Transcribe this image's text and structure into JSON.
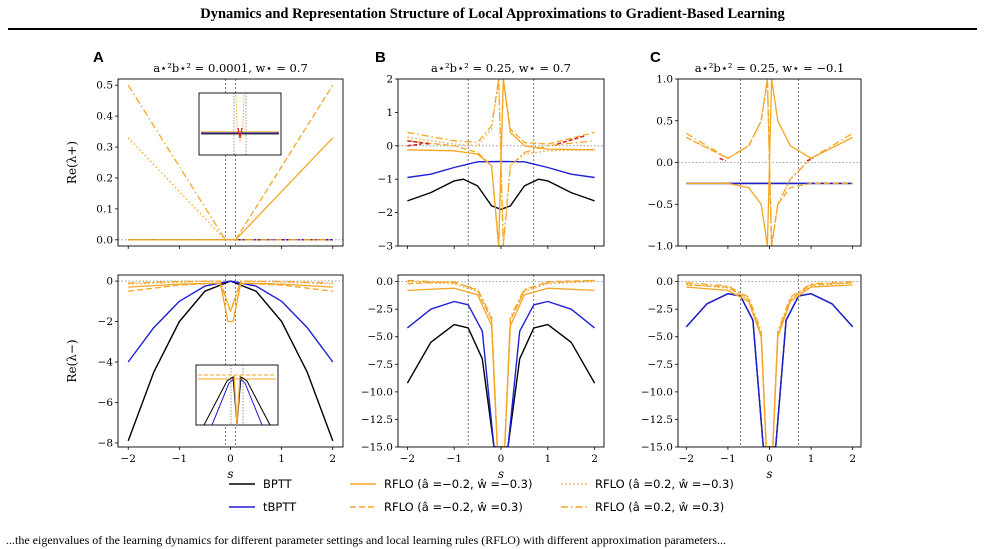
{
  "header": {
    "title": "Dynamics and Representation Structure of Local Approximations to Gradient-Based Learning"
  },
  "caption": {
    "text": "...the eigenvalues of the learning dynamics for different parameter settings and local learning rules (RFLO) with different approximation parameters..."
  },
  "colors": {
    "bptt": "#000000",
    "tbptt": "#1f1fd6",
    "rflo": "#f5a623",
    "unstable": "#d62728"
  },
  "legend": {
    "items": [
      {
        "key": "bptt",
        "label": "BPTT",
        "style": "solid",
        "color": "#000000"
      },
      {
        "key": "tbptt",
        "label": "tBPTT",
        "style": "solid",
        "color": "#1f1fd6"
      },
      {
        "key": "rflo1",
        "label": "RFLO (â =−0.2, ŵ =−0.3)",
        "style": "solid",
        "color": "#f5a623"
      },
      {
        "key": "rflo2",
        "label": "RFLO (â =−0.2, ŵ =0.3)",
        "style": "dashed",
        "color": "#f5a623"
      },
      {
        "key": "rflo3",
        "label": "RFLO (â =0.2, ŵ =−0.3)",
        "style": "dotted",
        "color": "#f5a623"
      },
      {
        "key": "rflo4",
        "label": "RFLO (â =0.2, ŵ =0.3)",
        "style": "dashdot",
        "color": "#f5a623"
      }
    ]
  },
  "chart_data": [
    {
      "panel": "A",
      "row": "top",
      "type": "line",
      "title": "a⋆²b⋆² = 0.0001, w⋆ = 0.7",
      "xlabel": "",
      "ylabel": "Re(λ+)",
      "xlim": [
        -2.2,
        2.2
      ],
      "ylim": [
        -0.02,
        0.52
      ],
      "xticks": [],
      "yticks": [
        0.0,
        0.1,
        0.2,
        0.3,
        0.4,
        0.5
      ],
      "ytick_labels": [
        "0.0",
        "0.1",
        "0.2",
        "0.3",
        "0.4",
        "0.5"
      ],
      "vlines": [
        -0.1,
        0.1
      ],
      "inset": "zoom near s = 0",
      "series": [
        {
          "name": "BPTT",
          "x": [
            -2,
            2
          ],
          "y": [
            0.0,
            0.0
          ]
        },
        {
          "name": "tBPTT",
          "x": [
            -2,
            2
          ],
          "y": [
            0.0,
            0.0
          ]
        },
        {
          "name": "RFLO (â =−0.2, ŵ =−0.3)",
          "x": [
            -2,
            -0.1,
            0.1,
            2
          ],
          "y": [
            0.0,
            0.0,
            0.0,
            0.33
          ]
        },
        {
          "name": "RFLO (â =−0.2, ŵ =0.3)",
          "x": [
            -2,
            -0.1,
            0.1,
            2
          ],
          "y": [
            0.0,
            0.0,
            0.0,
            0.5
          ]
        },
        {
          "name": "RFLO (â =0.2, ŵ =−0.3)",
          "x": [
            -2,
            -0.1,
            0.1,
            2
          ],
          "y": [
            0.33,
            0.0,
            0.0,
            0.0
          ]
        },
        {
          "name": "RFLO (â =0.2, ŵ =0.3)",
          "x": [
            -2,
            -0.1,
            0.1,
            2
          ],
          "y": [
            0.5,
            0.0,
            0.0,
            0.0
          ]
        }
      ]
    },
    {
      "panel": "B",
      "row": "top",
      "type": "line",
      "title": "a⋆²b⋆² = 0.25, w⋆ = 0.7",
      "xlabel": "",
      "ylabel": "",
      "xlim": [
        -2.2,
        2.2
      ],
      "ylim": [
        -3,
        2
      ],
      "xticks": [],
      "yticks": [
        -3,
        -2,
        -1,
        0,
        1,
        2
      ],
      "ytick_labels": [
        "−3",
        "−2",
        "−1",
        "0",
        "1",
        "2"
      ],
      "vlines": [
        -0.7,
        0.7
      ],
      "series": [
        {
          "name": "BPTT",
          "x": [
            -2,
            -1.5,
            -1,
            -0.8,
            -0.5,
            -0.2,
            0,
            0.2,
            0.5,
            0.8,
            1,
            1.5,
            2
          ],
          "y": [
            -1.65,
            -1.4,
            -1.05,
            -1.0,
            -1.2,
            -1.8,
            -1.9,
            -1.8,
            -1.2,
            -1.0,
            -1.05,
            -1.4,
            -1.65
          ]
        },
        {
          "name": "tBPTT",
          "x": [
            -2,
            -1.5,
            -1,
            -0.5,
            0,
            0.5,
            1,
            1.5,
            2
          ],
          "y": [
            -0.95,
            -0.85,
            -0.65,
            -0.48,
            -0.47,
            -0.48,
            -0.65,
            -0.85,
            -0.95
          ]
        },
        {
          "name": "RFLO (â =−0.2, ŵ =−0.3)",
          "x": [
            -2,
            -1,
            -0.5,
            -0.2,
            -0.05,
            0.05,
            0.2,
            0.5,
            1,
            2
          ],
          "y": [
            -0.12,
            -0.15,
            -0.25,
            -0.6,
            -3.0,
            2.0,
            0.4,
            0.0,
            -0.1,
            -0.12
          ]
        },
        {
          "name": "RFLO (â =−0.2, ŵ =0.3)",
          "x": [
            -2,
            -1,
            -0.5,
            -0.2,
            -0.05,
            0.05,
            0.2,
            0.5,
            1,
            2
          ],
          "y": [
            0.15,
            0.0,
            -0.2,
            -0.6,
            -3.0,
            2.0,
            0.5,
            0.1,
            0.05,
            0.4
          ]
        },
        {
          "name": "RFLO (â =0.2, ŵ =−0.3)",
          "x": [
            -2,
            -1,
            -0.5,
            -0.2,
            -0.05,
            0.05,
            0.2,
            0.5,
            1,
            2
          ],
          "y": [
            0.25,
            0.05,
            0.0,
            0.5,
            2.0,
            -3.0,
            -0.6,
            -0.25,
            -0.15,
            -0.12
          ]
        },
        {
          "name": "RFLO (â =0.2, ŵ =0.3)",
          "x": [
            -2,
            -1,
            -0.5,
            -0.2,
            -0.05,
            0.05,
            0.2,
            0.5,
            1,
            2
          ],
          "y": [
            0.4,
            0.15,
            0.1,
            0.6,
            2.0,
            -3.0,
            -0.6,
            -0.2,
            0.0,
            0.15
          ]
        }
      ]
    },
    {
      "panel": "C",
      "row": "top",
      "type": "line",
      "title": "a⋆²b⋆² = 0.25, w⋆ = −0.1",
      "xlabel": "",
      "ylabel": "",
      "xlim": [
        -2.2,
        2.2
      ],
      "ylim": [
        -1.0,
        1.0
      ],
      "xticks": [],
      "yticks": [
        -1.0,
        -0.5,
        0.0,
        0.5,
        1.0
      ],
      "ytick_labels": [
        "−1.0",
        "−0.5",
        "0.0",
        "0.5",
        "1.0"
      ],
      "vlines": [
        -0.7,
        0.7
      ],
      "series": [
        {
          "name": "BPTT",
          "x": [
            -2,
            2
          ],
          "y": [
            -0.25,
            -0.25
          ]
        },
        {
          "name": "tBPTT",
          "x": [
            -2,
            2
          ],
          "y": [
            -0.25,
            -0.25
          ]
        },
        {
          "name": "RFLO (â =−0.2, ŵ =−0.3)",
          "x": [
            -2,
            -1,
            -0.5,
            -0.2,
            -0.05,
            0.05,
            0.2,
            0.5,
            1,
            2
          ],
          "y": [
            -0.25,
            -0.25,
            -0.3,
            -0.5,
            -1.0,
            1.0,
            0.5,
            0.2,
            0.05,
            0.3
          ]
        },
        {
          "name": "RFLO (â =−0.2, ŵ =0.3)",
          "x": [
            -2,
            -1,
            -0.5,
            -0.2,
            -0.05,
            0.05,
            0.2,
            0.5,
            1,
            2
          ],
          "y": [
            0.3,
            0.05,
            0.2,
            0.5,
            1.0,
            -1.0,
            -0.5,
            -0.3,
            -0.25,
            -0.25
          ]
        },
        {
          "name": "RFLO (â =0.2, ŵ =−0.3)",
          "x": [
            -2,
            -1,
            -0.5,
            -0.2,
            -0.05,
            0.05,
            0.2,
            0.5,
            1,
            2
          ],
          "y": [
            0.3,
            0.05,
            0.2,
            0.5,
            1.0,
            -1.0,
            -0.5,
            -0.2,
            0.05,
            0.3
          ]
        },
        {
          "name": "RFLO (â =0.2, ŵ =0.3)",
          "x": [
            -2,
            -1,
            -0.5,
            -0.2,
            -0.05,
            0.05,
            0.2,
            0.5,
            1,
            2
          ],
          "y": [
            0.35,
            0.05,
            0.2,
            0.5,
            1.0,
            -1.0,
            -0.5,
            -0.2,
            0.05,
            0.35
          ]
        }
      ]
    },
    {
      "panel": "A",
      "row": "bottom",
      "type": "line",
      "title": "",
      "xlabel": "s",
      "ylabel": "Re(λ−)",
      "xlim": [
        -2.2,
        2.2
      ],
      "ylim": [
        -8.2,
        0.3
      ],
      "xticks": [
        -2,
        -1,
        0,
        1,
        2
      ],
      "xtick_labels": [
        "−2",
        "−1",
        "0",
        "1",
        "2"
      ],
      "yticks": [
        -8,
        -6,
        -4,
        -2,
        0
      ],
      "ytick_labels": [
        "−8",
        "−6",
        "−4",
        "−2",
        "0"
      ],
      "vlines": [
        -0.1,
        0.1
      ],
      "inset": "zoom near s = 0",
      "series": [
        {
          "name": "BPTT",
          "x": [
            -2,
            -1.5,
            -1,
            -0.5,
            0,
            0.5,
            1,
            1.5,
            2
          ],
          "y": [
            -7.9,
            -4.5,
            -2.0,
            -0.5,
            0.0,
            -0.5,
            -2.0,
            -4.5,
            -7.9
          ]
        },
        {
          "name": "tBPTT",
          "x": [
            -2,
            -1.5,
            -1,
            -0.5,
            0,
            0.5,
            1,
            1.5,
            2
          ],
          "y": [
            -4.0,
            -2.3,
            -1.0,
            -0.25,
            0.0,
            -0.25,
            -1.0,
            -2.3,
            -4.0
          ]
        },
        {
          "name": "RFLO (â =−0.2, ŵ =−0.3)",
          "x": [
            -2,
            -1,
            -0.2,
            -0.05,
            0,
            0.05,
            0.2,
            1,
            2
          ],
          "y": [
            -0.3,
            -0.15,
            -0.1,
            -2.0,
            -2.0,
            -2.0,
            -0.1,
            -0.15,
            -0.3
          ]
        },
        {
          "name": "RFLO (â =−0.2, ŵ =0.3)",
          "x": [
            -2,
            -1,
            -0.2,
            0,
            0.2,
            1,
            2
          ],
          "y": [
            -0.5,
            -0.2,
            -0.1,
            -1.5,
            -0.1,
            -0.2,
            -0.5
          ]
        },
        {
          "name": "RFLO (â =0.2, ŵ =−0.3)",
          "x": [
            -2,
            -1,
            -0.2,
            0,
            0.2,
            1,
            2
          ],
          "y": [
            -0.15,
            -0.05,
            0.0,
            -1.5,
            0.0,
            -0.05,
            -0.15
          ]
        },
        {
          "name": "RFLO (â =0.2, ŵ =0.3)",
          "x": [
            -2,
            -1,
            -0.2,
            0,
            0.2,
            1,
            2
          ],
          "y": [
            -0.1,
            -0.02,
            0.0,
            -1.5,
            0.0,
            -0.02,
            -0.1
          ]
        }
      ]
    },
    {
      "panel": "B",
      "row": "bottom",
      "type": "line",
      "title": "",
      "xlabel": "s",
      "ylabel": "",
      "xlim": [
        -2.2,
        2.2
      ],
      "ylim": [
        -15,
        0.6
      ],
      "xticks": [
        -2,
        -1,
        0,
        1,
        2
      ],
      "xtick_labels": [
        "−2",
        "−1",
        "0",
        "1",
        "2"
      ],
      "yticks": [
        -15.0,
        -12.5,
        -10.0,
        -7.5,
        -5.0,
        -2.5,
        0.0
      ],
      "ytick_labels": [
        "−15.0",
        "−12.5",
        "−10.0",
        "−7.5",
        "−5.0",
        "−2.5",
        "0.0"
      ],
      "vlines": [
        -0.7,
        0.7
      ],
      "series": [
        {
          "name": "BPTT",
          "x": [
            -2,
            -1.5,
            -1,
            -0.7,
            -0.4,
            -0.15,
            0.15,
            0.4,
            0.7,
            1,
            1.5,
            2
          ],
          "y": [
            -9.2,
            -5.5,
            -3.9,
            -4.2,
            -7.0,
            -15.0,
            -15.0,
            -7.0,
            -4.2,
            -3.9,
            -5.5,
            -9.2
          ]
        },
        {
          "name": "tBPTT",
          "x": [
            -2,
            -1.5,
            -1,
            -0.7,
            -0.4,
            -0.15,
            0.15,
            0.4,
            0.7,
            1,
            1.5,
            2
          ],
          "y": [
            -4.2,
            -2.5,
            -1.8,
            -2.1,
            -4.5,
            -15.0,
            -15.0,
            -4.5,
            -2.1,
            -1.8,
            -2.5,
            -4.2
          ]
        },
        {
          "name": "RFLO (â =−0.2, ŵ =−0.3)",
          "x": [
            -2,
            -1,
            -0.5,
            -0.2,
            -0.08,
            0.08,
            0.2,
            0.5,
            1,
            2
          ],
          "y": [
            -0.8,
            -0.6,
            -1.2,
            -4.0,
            -15.0,
            -15.0,
            -4.0,
            -1.2,
            -0.6,
            -0.8
          ]
        },
        {
          "name": "RFLO (â =−0.2, ŵ =0.3)",
          "x": [
            -2,
            -1,
            -0.5,
            -0.2,
            -0.08,
            0.08,
            0.2,
            0.5,
            1,
            2
          ],
          "y": [
            -0.2,
            0.0,
            -0.8,
            -3.5,
            -15.0,
            -15.0,
            -3.5,
            -0.8,
            0.0,
            0.1
          ]
        },
        {
          "name": "RFLO (â =0.2, ŵ =−0.3)",
          "x": [
            -2,
            -1,
            -0.5,
            -0.2,
            -0.08,
            0.08,
            0.2,
            0.5,
            1,
            2
          ],
          "y": [
            0.0,
            -0.2,
            -0.9,
            -3.5,
            -15.0,
            -15.0,
            -3.5,
            -0.9,
            -0.2,
            0.0
          ]
        },
        {
          "name": "RFLO (â =0.2, ŵ =0.3)",
          "x": [
            -2,
            -1,
            -0.5,
            -0.2,
            -0.08,
            0.08,
            0.2,
            0.5,
            1,
            2
          ],
          "y": [
            0.1,
            -0.1,
            -0.7,
            -3.2,
            -15.0,
            -15.0,
            -3.2,
            -0.7,
            -0.1,
            0.1
          ]
        }
      ]
    },
    {
      "panel": "C",
      "row": "bottom",
      "type": "line",
      "title": "",
      "xlabel": "s",
      "ylabel": "",
      "xlim": [
        -2.2,
        2.2
      ],
      "ylim": [
        -15,
        0.6
      ],
      "xticks": [
        -2,
        -1,
        0,
        1,
        2
      ],
      "xtick_labels": [
        "−2",
        "−1",
        "0",
        "1",
        "2"
      ],
      "yticks": [
        -15.0,
        -12.5,
        -10.0,
        -7.5,
        -5.0,
        -2.5,
        0.0
      ],
      "ytick_labels": [
        "−15.0",
        "−12.5",
        "−10.0",
        "−7.5",
        "−5.0",
        "−2.5",
        "0.0"
      ],
      "vlines": [
        -0.7,
        0.7
      ],
      "series": [
        {
          "name": "BPTT",
          "x": [
            -2,
            -1.5,
            -1,
            -0.7,
            -0.4,
            -0.15,
            0.15,
            0.4,
            0.7,
            1,
            1.5,
            2
          ],
          "y": [
            -4.1,
            -2.0,
            -1.1,
            -1.3,
            -3.5,
            -15.0,
            -15.0,
            -3.5,
            -1.3,
            -1.1,
            -2.0,
            -4.1
          ]
        },
        {
          "name": "tBPTT",
          "x": [
            -2,
            -1.5,
            -1,
            -0.7,
            -0.4,
            -0.15,
            0.15,
            0.4,
            0.7,
            1,
            1.5,
            2
          ],
          "y": [
            -4.1,
            -2.0,
            -1.1,
            -1.3,
            -3.5,
            -15.0,
            -15.0,
            -3.5,
            -1.3,
            -1.1,
            -2.0,
            -4.1
          ]
        },
        {
          "name": "RFLO (â =−0.2, ŵ =−0.3)",
          "x": [
            -2,
            -1,
            -0.5,
            -0.2,
            -0.08,
            0.08,
            0.2,
            0.5,
            1,
            2
          ],
          "y": [
            -0.5,
            -0.8,
            -1.8,
            -5.0,
            -15.0,
            -15.0,
            -5.0,
            -1.8,
            -0.5,
            -0.3
          ]
        },
        {
          "name": "RFLO (â =−0.2, ŵ =0.3)",
          "x": [
            -2,
            -1,
            -0.5,
            -0.2,
            -0.08,
            0.08,
            0.2,
            0.5,
            1,
            2
          ],
          "y": [
            -0.3,
            -0.5,
            -1.6,
            -4.8,
            -15.0,
            -15.0,
            -4.8,
            -1.6,
            -0.3,
            -0.1
          ]
        },
        {
          "name": "RFLO (â =0.2, ŵ =−0.3)",
          "x": [
            -2,
            -1,
            -0.5,
            -0.2,
            -0.08,
            0.08,
            0.2,
            0.5,
            1,
            2
          ],
          "y": [
            -0.2,
            -0.6,
            -1.6,
            -4.8,
            -15.0,
            -15.0,
            -4.8,
            -1.6,
            -0.4,
            -0.1
          ]
        },
        {
          "name": "RFLO (â =0.2, ŵ =0.3)",
          "x": [
            -2,
            -1,
            -0.5,
            -0.2,
            -0.08,
            0.08,
            0.2,
            0.5,
            1,
            2
          ],
          "y": [
            -0.1,
            -0.4,
            -1.4,
            -4.5,
            -15.0,
            -15.0,
            -4.5,
            -1.4,
            -0.2,
            0.0
          ]
        }
      ]
    }
  ]
}
